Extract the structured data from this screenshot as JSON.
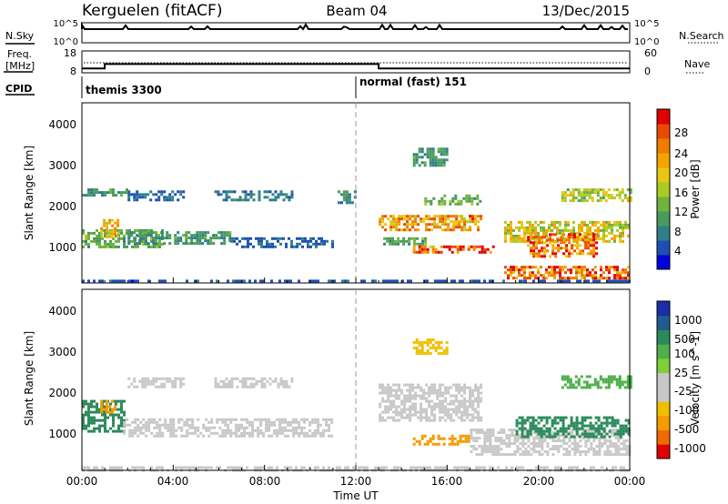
{
  "header": {
    "radar": "Kerguelen (fitACF)",
    "beam": "Beam 04",
    "date": "13/Dec/2015"
  },
  "sky_panel": {
    "left_label": "N.Sky",
    "right_label": "N.Search",
    "left_ticks": [
      "10^5",
      "10^0"
    ],
    "right_ticks": [
      "10^5",
      "10^0"
    ]
  },
  "freq_panel": {
    "left_label_line1": "Freq.",
    "left_label_line2": "[MHz]",
    "left_ticks": [
      "18",
      "8"
    ],
    "right_label": "Nave",
    "right_ticks": [
      "60",
      "0"
    ]
  },
  "cpid": {
    "label": "CPID",
    "modes": [
      {
        "text": "themis 3300",
        "start_hour": 0
      },
      {
        "text": "normal (fast) 151",
        "start_hour": 12
      }
    ]
  },
  "x_axis": {
    "title": "Time UT",
    "ticks": [
      "00:00",
      "04:00",
      "08:00",
      "12:00",
      "16:00",
      "20:00",
      "00:00"
    ]
  },
  "power_panel": {
    "ylabel": "Slant Range [km]",
    "yticks": [
      "4000",
      "3000",
      "2000",
      "1000"
    ],
    "colorbar_label": "Power [dB]",
    "colorbar_ticks": [
      "28",
      "24",
      "20",
      "16",
      "12",
      "8",
      "4"
    ],
    "colors": [
      "#0000dd",
      "#1e4fb4",
      "#2f7f8a",
      "#4a9a5c",
      "#6fb33d",
      "#a9cc23",
      "#e8c712",
      "#f5a300",
      "#f07d00",
      "#ea4a00",
      "#e00000"
    ]
  },
  "velocity_panel": {
    "ylabel": "Slant Range [km]",
    "yticks": [
      "4000",
      "3000",
      "2000",
      "1000"
    ],
    "colorbar_label": "Velocity [m s^-1]",
    "colorbar_ticks": [
      "1000",
      "500",
      "100",
      "25",
      "-25",
      "-100",
      "-500",
      "-1000"
    ],
    "colors": [
      "#1a2ea8",
      "#1f5d8f",
      "#2a8a5a",
      "#4fb04b",
      "#7fcf3a",
      "#c8c8c8",
      "#c8c8c8",
      "#f0c000",
      "#f59a00",
      "#ef6a00",
      "#e00000"
    ]
  },
  "chart_data": {
    "type": "heatmap",
    "title": "Kerguelen (fitACF) Beam 04 13/Dec/2015",
    "xlabel": "Time UT",
    "ylabel": "Slant Range [km]",
    "xlim": [
      "00:00",
      "24:00"
    ],
    "ylim": [
      180,
      4600
    ],
    "frequency_mhz": [
      {
        "from_hour": 0,
        "to_hour": 1,
        "value": 10
      },
      {
        "from_hour": 1,
        "to_hour": 13,
        "value": 12
      },
      {
        "from_hour": 13,
        "to_hour": 24,
        "value": 10
      }
    ],
    "power_regions": [
      {
        "t0": 0.0,
        "t1": 24.0,
        "r0": 200,
        "r1": 260,
        "db": 6
      },
      {
        "t0": 0.0,
        "t1": 3.5,
        "r0": 1050,
        "r1": 1500,
        "db": 12
      },
      {
        "t0": 0.8,
        "t1": 1.6,
        "r0": 1300,
        "r1": 1750,
        "db": 20
      },
      {
        "t0": 2.0,
        "t1": 6.5,
        "r0": 1150,
        "r1": 1450,
        "db": 10
      },
      {
        "t0": 6.5,
        "t1": 11.0,
        "r0": 1050,
        "r1": 1300,
        "db": 7
      },
      {
        "t0": 2.0,
        "t1": 4.5,
        "r0": 2200,
        "r1": 2450,
        "db": 7
      },
      {
        "t0": 5.8,
        "t1": 9.2,
        "r0": 2200,
        "r1": 2450,
        "db": 8
      },
      {
        "t0": 0.0,
        "t1": 2.0,
        "r0": 2300,
        "r1": 2500,
        "db": 10
      },
      {
        "t0": 11.2,
        "t1": 12.0,
        "r0": 2150,
        "r1": 2450,
        "db": 9
      },
      {
        "t0": 13.0,
        "t1": 17.5,
        "r0": 1450,
        "r1": 1850,
        "db": 22
      },
      {
        "t0": 15.0,
        "t1": 17.5,
        "r0": 2100,
        "r1": 2350,
        "db": 12
      },
      {
        "t0": 13.2,
        "t1": 15.0,
        "r0": 1100,
        "r1": 1300,
        "db": 12
      },
      {
        "t0": 14.5,
        "t1": 18.0,
        "r0": 900,
        "r1": 1100,
        "db": 26
      },
      {
        "t0": 18.5,
        "t1": 24.0,
        "r0": 1200,
        "r1": 1700,
        "db": 18
      },
      {
        "t0": 19.5,
        "t1": 22.5,
        "r0": 800,
        "r1": 1400,
        "db": 24
      },
      {
        "t0": 18.5,
        "t1": 24.0,
        "r0": 300,
        "r1": 600,
        "db": 24
      },
      {
        "t0": 21.0,
        "t1": 24.0,
        "r0": 2200,
        "r1": 2500,
        "db": 16
      },
      {
        "t0": 14.5,
        "t1": 16.0,
        "r0": 3050,
        "r1": 3500,
        "db": 10
      }
    ],
    "velocity_regions": [
      {
        "t0": 0.0,
        "t1": 24.0,
        "r0": 200,
        "r1": 280,
        "ms": 0
      },
      {
        "t0": 0.0,
        "t1": 1.8,
        "r0": 1150,
        "r1": 1900,
        "ms": 150
      },
      {
        "t0": 0.8,
        "t1": 1.4,
        "r0": 1600,
        "r1": 1900,
        "ms": -150
      },
      {
        "t0": 1.8,
        "t1": 11.0,
        "r0": 1050,
        "r1": 1450,
        "ms": 0
      },
      {
        "t0": 2.0,
        "t1": 4.5,
        "r0": 2200,
        "r1": 2450,
        "ms": 0
      },
      {
        "t0": 5.8,
        "t1": 9.2,
        "r0": 2200,
        "r1": 2450,
        "ms": 0
      },
      {
        "t0": 13.0,
        "t1": 17.5,
        "r0": 1400,
        "r1": 2300,
        "ms": 0
      },
      {
        "t0": 14.5,
        "t1": 17.0,
        "r0": 850,
        "r1": 1050,
        "ms": -200
      },
      {
        "t0": 17.0,
        "t1": 24.0,
        "r0": 600,
        "r1": 1200,
        "ms": 0
      },
      {
        "t0": 19.0,
        "t1": 24.0,
        "r0": 1000,
        "r1": 1500,
        "ms": 200
      },
      {
        "t0": 21.0,
        "t1": 24.0,
        "r0": 2200,
        "r1": 2500,
        "ms": 80
      },
      {
        "t0": 14.5,
        "t1": 16.0,
        "r0": 3050,
        "r1": 3400,
        "ms": -80
      }
    ]
  }
}
